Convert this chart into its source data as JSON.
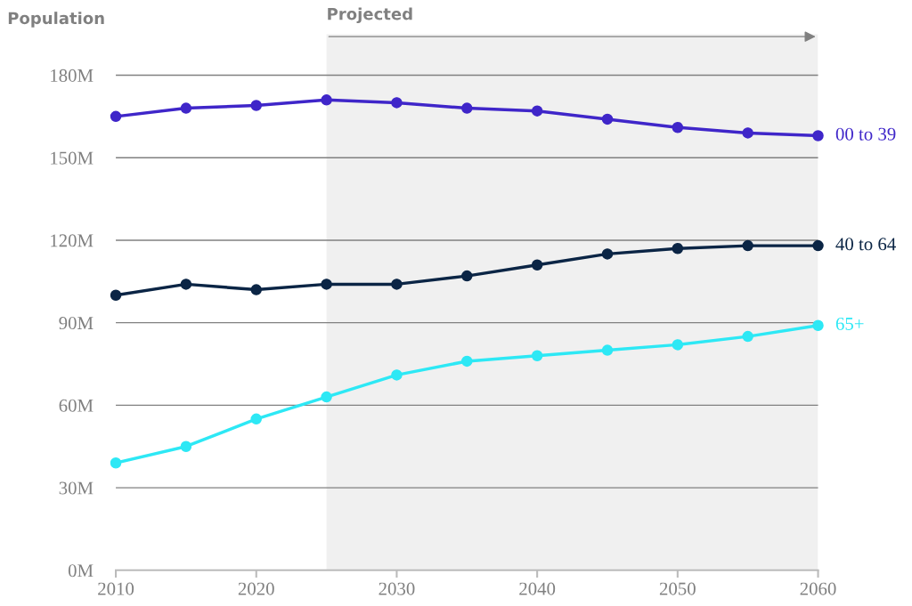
{
  "chart_data": {
    "type": "line",
    "ylabel": "Population",
    "x": [
      2010,
      2015,
      2020,
      2025,
      2030,
      2035,
      2040,
      2045,
      2050,
      2055,
      2060
    ],
    "series": [
      {
        "name": "00 to 39",
        "color": "#3f26c9",
        "values": [
          165,
          168,
          169,
          171,
          170,
          168,
          167,
          164,
          161,
          159,
          158
        ]
      },
      {
        "name": "40 to 64",
        "color": "#0b2545",
        "values": [
          100,
          104,
          102,
          104,
          104,
          107,
          111,
          115,
          117,
          118,
          118
        ]
      },
      {
        "name": "65+",
        "color": "#2de8f5",
        "values": [
          39,
          45,
          55,
          63,
          71,
          76,
          78,
          80,
          82,
          85,
          89
        ]
      }
    ],
    "xlim": [
      2010,
      2060
    ],
    "xticks": [
      2010,
      2020,
      2030,
      2040,
      2050,
      2060
    ],
    "ylim": [
      0,
      195
    ],
    "yticks": [
      {
        "value": 0,
        "label": "0M"
      },
      {
        "value": 30,
        "label": "30M"
      },
      {
        "value": 60,
        "label": "60M"
      },
      {
        "value": 90,
        "label": "90M"
      },
      {
        "value": 120,
        "label": "120M"
      },
      {
        "value": 150,
        "label": "150M"
      },
      {
        "value": 180,
        "label": "180M"
      }
    ],
    "bands": [
      {
        "axis": "x",
        "from": 2025,
        "to": 2060,
        "label": "Projected",
        "color": "#f0f0f0"
      }
    ],
    "grid": "y",
    "legend": false,
    "marker": "circle",
    "line_style": "solid"
  }
}
